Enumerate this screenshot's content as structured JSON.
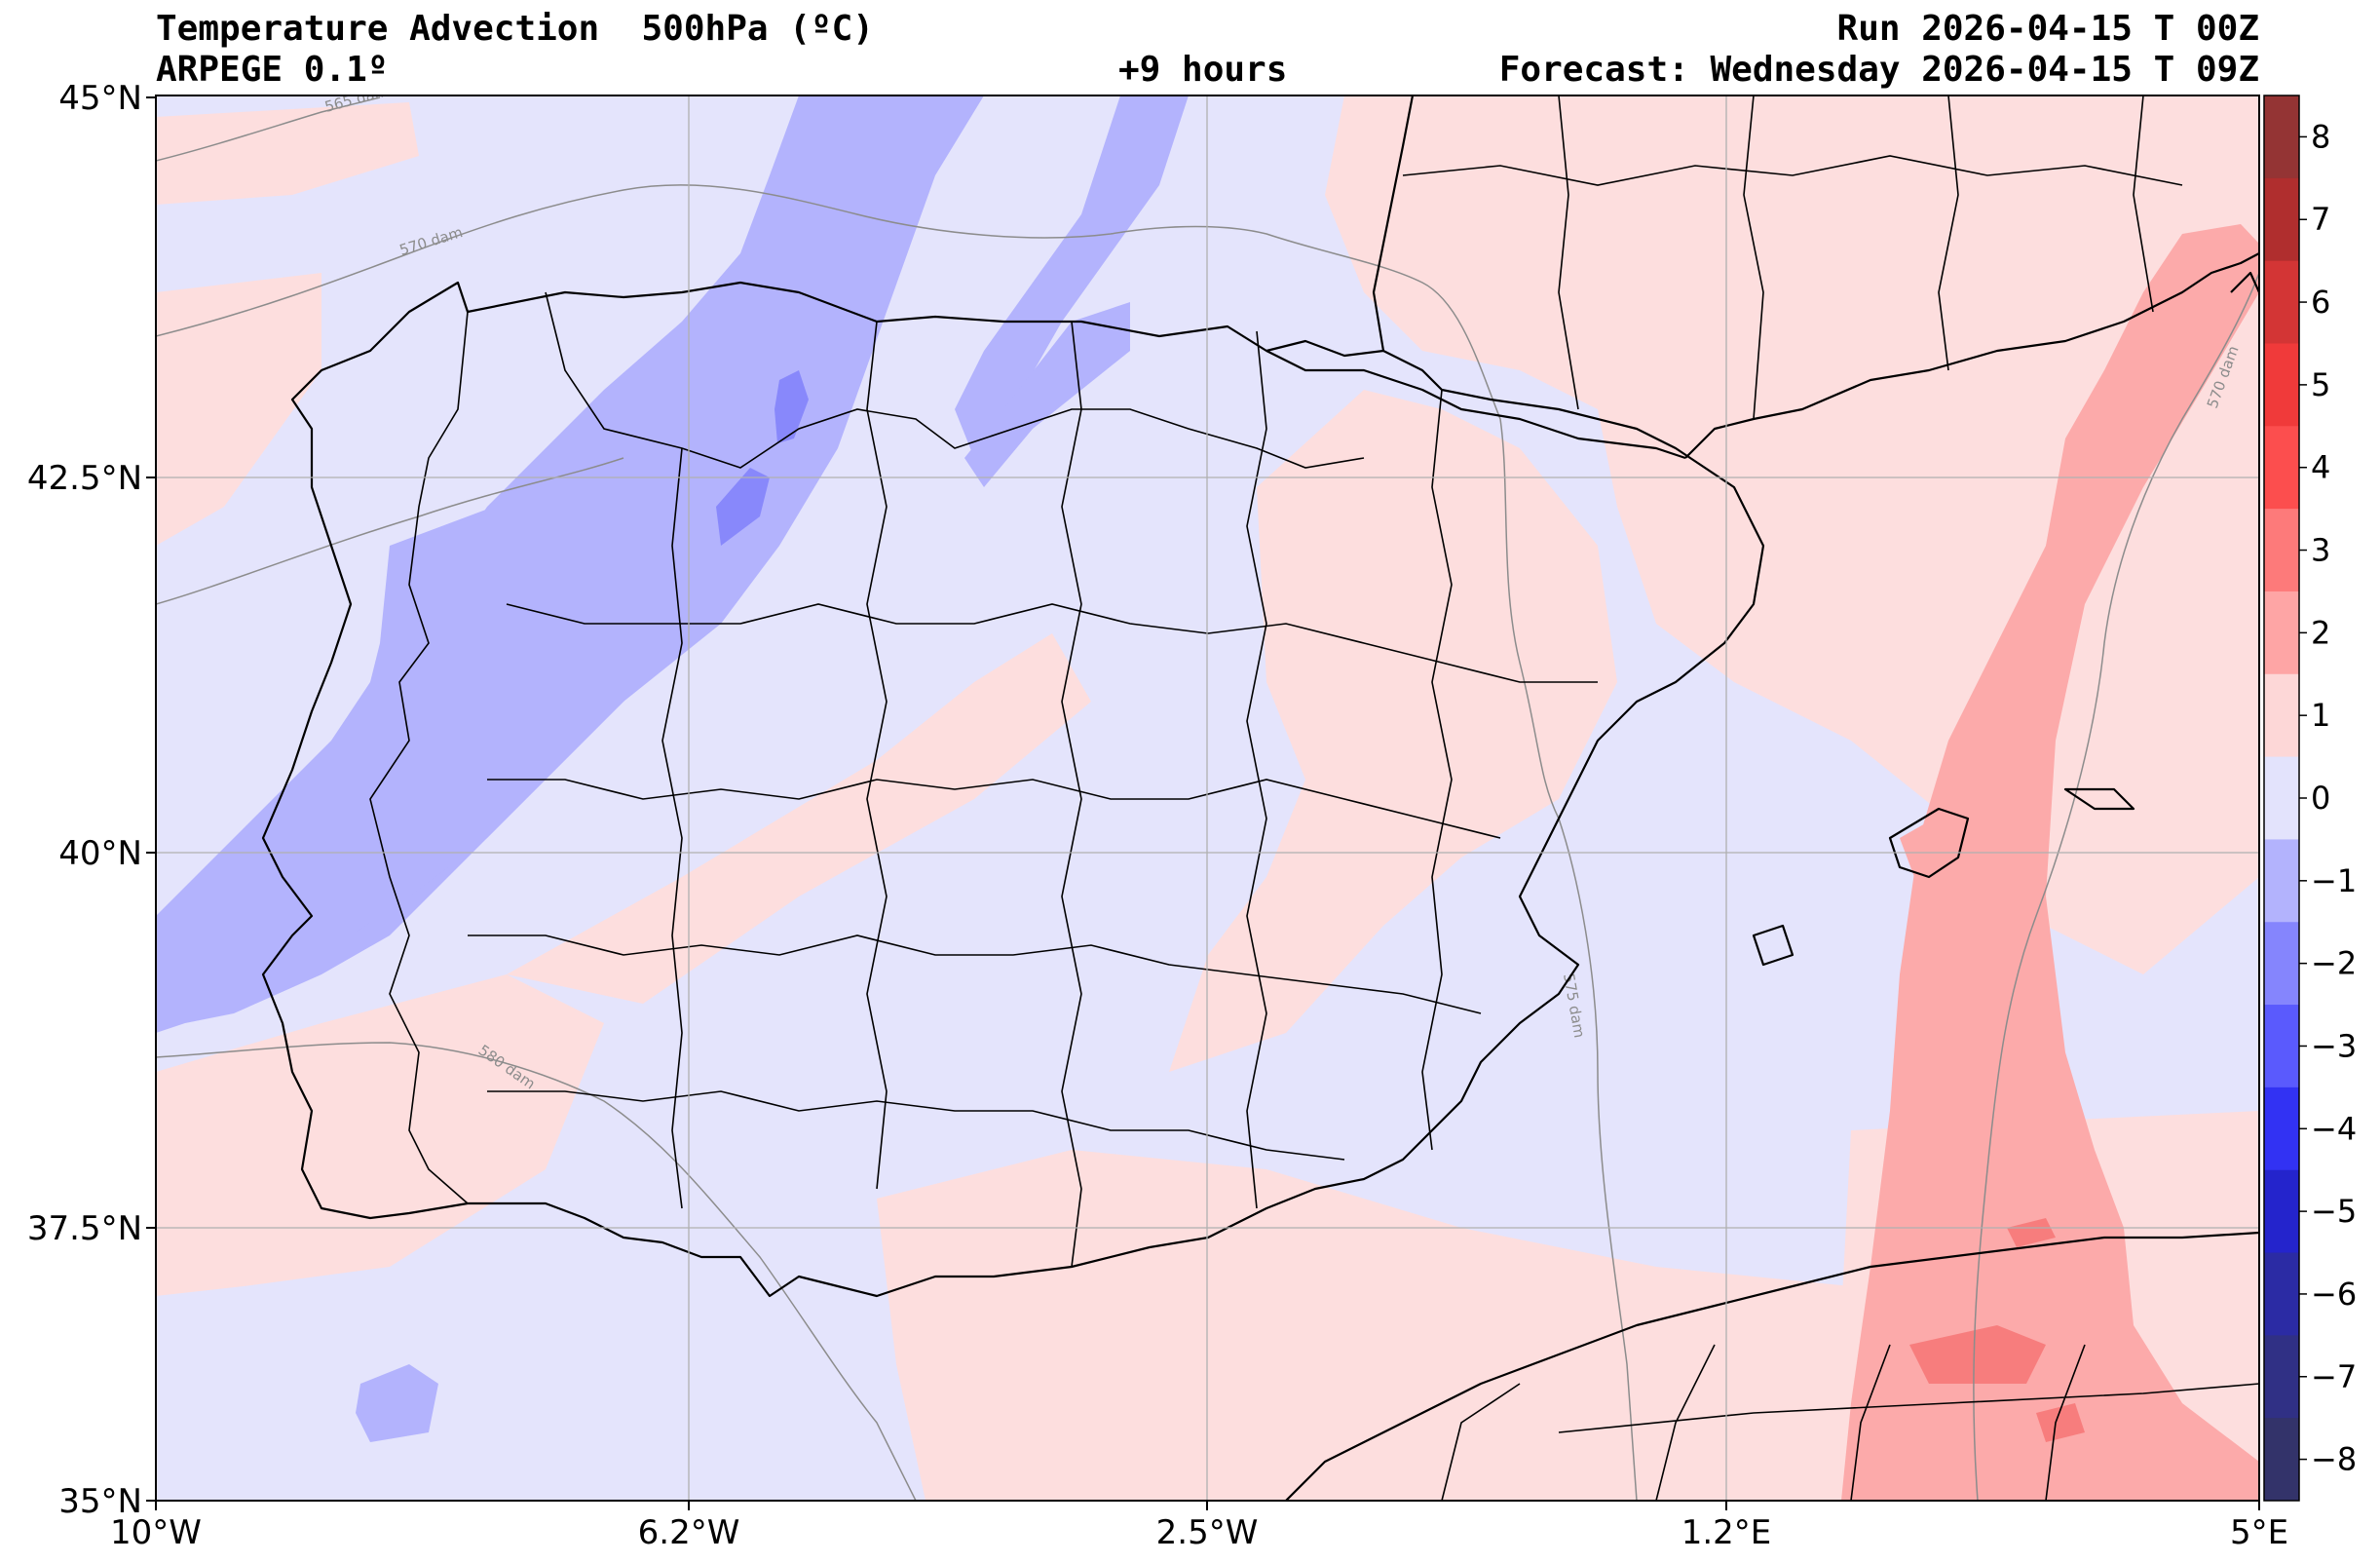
{
  "header": {
    "title": "Temperature Advection  500hPa (ºC)",
    "model": "ARPEGE 0.1º",
    "lead_time": "+9 hours",
    "run": "Run 2026-04-15 T 00Z",
    "forecast": "Forecast: Wednesday 2026-04-15 T 09Z"
  },
  "axes": {
    "lat_labels": [
      "45°N",
      "42.5°N",
      "40°N",
      "37.5°N",
      "35°N"
    ],
    "lon_labels": [
      "10°W",
      "6.2°W",
      "2.5°W",
      "1.2°E",
      "5°E"
    ]
  },
  "colorbar": {
    "labels": [
      "8",
      "7",
      "6",
      "5",
      "4",
      "3",
      "2",
      "1",
      "0",
      "−1",
      "−2",
      "−3",
      "−4",
      "−5",
      "−6",
      "−7",
      "−8"
    ],
    "colors": [
      "#943434",
      "#b02e2e",
      "#d33535",
      "#f03a3a",
      "#fc4e4e",
      "#fd7a7a",
      "#fea5a5",
      "#fdd7d7",
      "#e3e3fc",
      "#b3b3fd",
      "#8585fd",
      "#5a5afd",
      "#3232f3",
      "#2424cc",
      "#2b2ba4",
      "#303085",
      "#33336a"
    ]
  },
  "contours": {
    "labels": [
      "565 dam",
      "570 dam",
      "575 dam",
      "580 dam",
      "570 dam"
    ],
    "color": "#8c8c8c"
  },
  "map_colors": {
    "background": "#e4e4fc",
    "warm_weak": "#fddede",
    "warm_mid": "#fcaaaa",
    "warm_strong": "#f77d7d",
    "cold_weak": "#b3b3fd",
    "cold_mid": "#8888fb"
  }
}
